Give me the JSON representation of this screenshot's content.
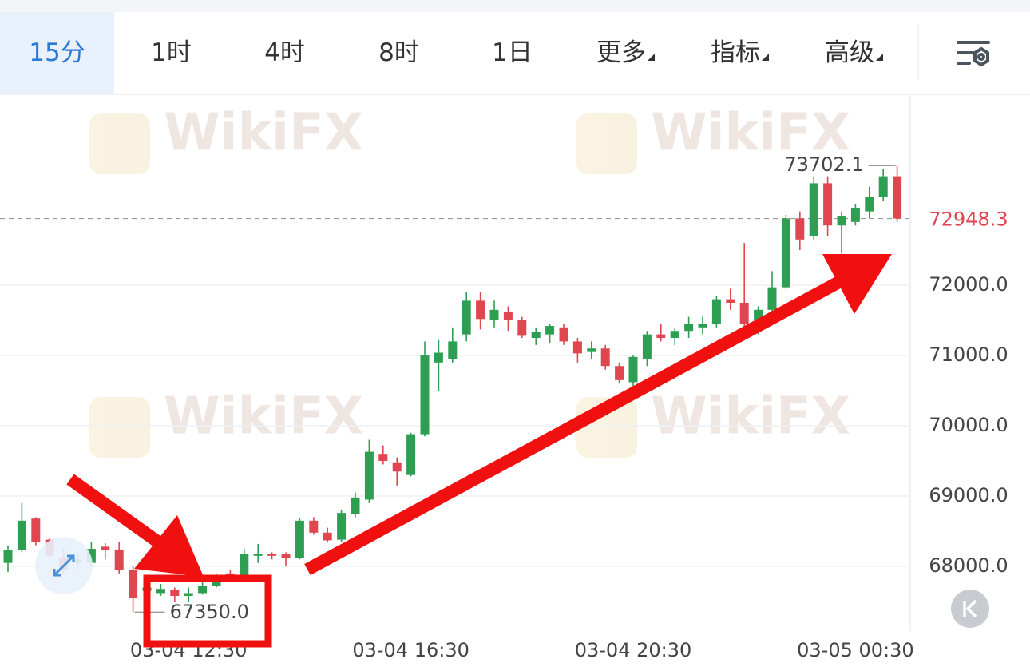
{
  "toolbar": {
    "tabs": [
      {
        "label": "15分",
        "selected": true
      },
      {
        "label": "1时"
      },
      {
        "label": "4时"
      },
      {
        "label": "8时"
      },
      {
        "label": "1日"
      },
      {
        "label": "更多",
        "dropdown": true
      },
      {
        "label": "指标",
        "dropdown": true
      },
      {
        "label": "高级",
        "dropdown": true
      }
    ]
  },
  "watermark": "WikiFX",
  "chart_data": {
    "type": "candlestick",
    "categories": [
      null,
      null,
      null,
      null,
      null,
      null,
      null,
      null,
      null,
      null,
      null,
      null,
      null,
      "03-04 12:30",
      null,
      null,
      null,
      null,
      null,
      null,
      null,
      null,
      null,
      null,
      null,
      null,
      null,
      null,
      null,
      "03-04 16:30",
      null,
      null,
      null,
      null,
      null,
      null,
      null,
      null,
      null,
      null,
      null,
      null,
      null,
      null,
      null,
      "03-04 20:30",
      null,
      null,
      null,
      null,
      null,
      null,
      null,
      null,
      null,
      null,
      null,
      null,
      null,
      null,
      null,
      "03-05 00:30",
      null,
      null,
      null
    ],
    "open": [
      68050,
      68230,
      68680,
      68380,
      68120,
      68050,
      68050,
      68280,
      68240,
      67950,
      67650,
      67620,
      67660,
      67580,
      67620,
      67720,
      67900,
      67850,
      68150,
      68180,
      68170,
      68120,
      68650,
      68480,
      68380,
      68750,
      68950,
      69600,
      69480,
      69300,
      69880,
      70900,
      70950,
      71300,
      71780,
      71500,
      71620,
      71500,
      71250,
      71300,
      71400,
      71200,
      71050,
      71100,
      70850,
      70620,
      70950,
      71300,
      71250,
      71350,
      71400,
      71450,
      71800,
      71750,
      71500,
      71650,
      71970,
      72950,
      72700,
      73450,
      72850,
      72900,
      73050,
      73250,
      73550
    ],
    "high": [
      68300,
      68900,
      68700,
      68400,
      68250,
      68200,
      68350,
      68330,
      68350,
      68000,
      67800,
      67750,
      67700,
      67700,
      67800,
      67900,
      67950,
      68250,
      68320,
      68200,
      68200,
      68680,
      68700,
      68550,
      68800,
      69050,
      69800,
      69720,
      69550,
      69900,
      71200,
      71220,
      71400,
      71900,
      71900,
      71780,
      71700,
      71550,
      71400,
      71450,
      71450,
      71250,
      71200,
      71150,
      70900,
      71000,
      71350,
      71450,
      71400,
      71550,
      71550,
      71850,
      71950,
      72600,
      71700,
      72200,
      73000,
      73050,
      73550,
      73550,
      73050,
      73150,
      73400,
      73650,
      73702.1
    ],
    "low": [
      67920,
      68200,
      68300,
      68100,
      67900,
      67950,
      68000,
      68100,
      67900,
      67350,
      67550,
      67580,
      67500,
      67500,
      67600,
      67700,
      67800,
      67800,
      68050,
      68100,
      68000,
      68100,
      68450,
      68350,
      68350,
      68700,
      68900,
      69450,
      69150,
      69280,
      69850,
      70500,
      70900,
      71200,
      71370,
      71400,
      71350,
      71250,
      71150,
      71170,
      71150,
      70900,
      70950,
      70800,
      70600,
      70550,
      70850,
      71200,
      71150,
      71250,
      71300,
      71400,
      71650,
      71400,
      71300,
      71550,
      71950,
      72500,
      72650,
      72700,
      72450,
      72850,
      72950,
      73200,
      72900
    ],
    "close": [
      68230,
      68650,
      68350,
      68150,
      67960,
      68100,
      68250,
      68230,
      67950,
      67550,
      67700,
      67680,
      67580,
      67620,
      67720,
      67850,
      67820,
      68180,
      68180,
      68150,
      68120,
      68650,
      68480,
      68370,
      68760,
      68980,
      69630,
      69500,
      69350,
      69880,
      71000,
      71040,
      71200,
      71780,
      71520,
      71650,
      71500,
      71280,
      71330,
      71420,
      71200,
      71030,
      71100,
      70850,
      70650,
      70980,
      71300,
      71250,
      71350,
      71450,
      71450,
      71800,
      71750,
      71450,
      71650,
      71970,
      72950,
      72650,
      73450,
      72850,
      72980,
      73100,
      73250,
      73550,
      72948.3
    ],
    "up_color": "#2e9e52",
    "down_color": "#e0464f",
    "ylim": [
      67080,
      74716
    ],
    "yticks": [
      {
        "value": 68000,
        "label": "68000.0"
      },
      {
        "value": 69000,
        "label": "69000.0"
      },
      {
        "value": 70000,
        "label": "70000.0"
      },
      {
        "value": 71000,
        "label": "71000.0"
      },
      {
        "value": 72000,
        "label": "72000.0"
      }
    ],
    "grid": true,
    "max_label": 73702.1,
    "min_label": {
      "value": 67350,
      "label": "67350.0"
    },
    "last_price": 72948.3
  }
}
